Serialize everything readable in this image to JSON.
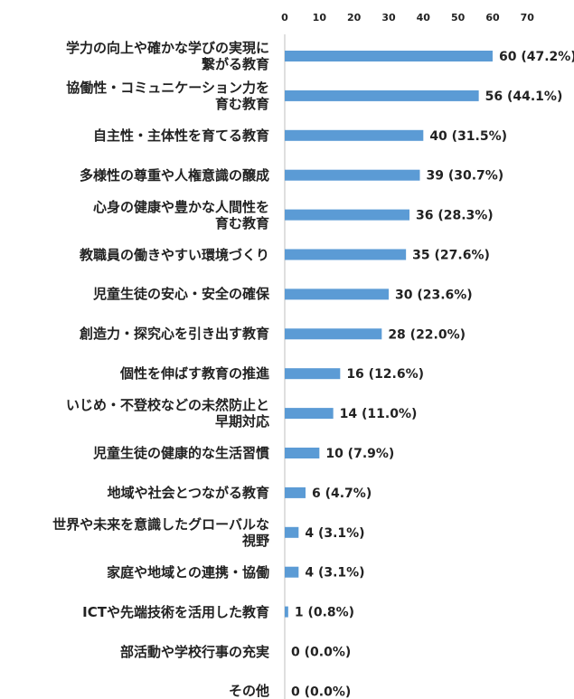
{
  "chart_data": {
    "type": "bar",
    "orientation": "horizontal",
    "categories": [
      "学力の向上や確かな学びの実現に\n繋がる教育",
      "協働性・コミュニケーション力を\n育む教育",
      "自主性・主体性を育てる教育",
      "多様性の尊重や人権意識の醸成",
      "心身の健康や豊かな人間性を\n育む教育",
      "教職員の働きやすい環境づくり",
      "児童生徒の安心・安全の確保",
      "創造力・探究心を引き出す教育",
      "個性を伸ばす教育の推進",
      "いじめ・不登校などの未然防止と\n早期対応",
      "児童生徒の健康的な生活習慣",
      "地域や社会とつながる教育",
      "世界や未来を意識したグローバルな\n視野",
      "家庭や地域との連携・協働",
      "ICTや先端技術を活用した教育",
      "部活動や学校行事の充実",
      "その他"
    ],
    "values": [
      60,
      56,
      40,
      39,
      36,
      35,
      30,
      28,
      16,
      14,
      10,
      6,
      4,
      4,
      1,
      0,
      0
    ],
    "value_labels": [
      "60 (47.2%)",
      "56 (44.1%)",
      "40 (31.5%)",
      "39 (30.7%)",
      "36 (28.3%)",
      "35 (27.6%)",
      "30 (23.6%)",
      "28 (22.0%)",
      "16 (12.6%)",
      "14 (11.0%)",
      "10 (7.9%)",
      "6 (4.7%)",
      "4 (3.1%)",
      "4 (3.1%)",
      "1 (0.8%)",
      "0 (0.0%)",
      "0 (0.0%)"
    ],
    "color": "#5b9bd5",
    "xlim": [
      0,
      70
    ],
    "xticks": [
      0,
      10,
      20,
      30,
      40,
      50,
      60,
      70
    ]
  }
}
